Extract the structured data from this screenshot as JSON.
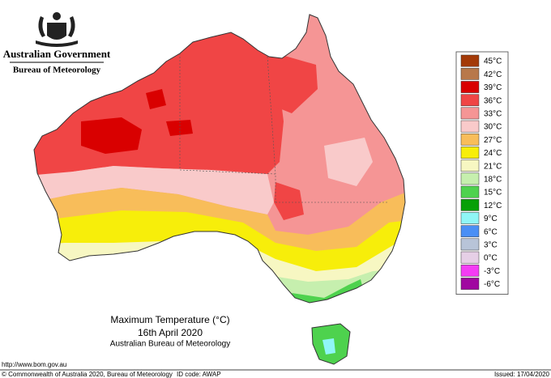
{
  "header": {
    "government": "Australian Government",
    "bureau": "Bureau of Meteorology"
  },
  "legend": {
    "items": [
      {
        "label": "45°C",
        "color": "#a33a08"
      },
      {
        "label": "42°C",
        "color": "#b8784a"
      },
      {
        "label": "39°C",
        "color": "#d90000"
      },
      {
        "label": "36°C",
        "color": "#f04545"
      },
      {
        "label": "33°C",
        "color": "#f59595"
      },
      {
        "label": "30°C",
        "color": "#f9caca"
      },
      {
        "label": "27°C",
        "color": "#f8bd5a"
      },
      {
        "label": "24°C",
        "color": "#f7ee0a"
      },
      {
        "label": "21°C",
        "color": "#f7f7c2"
      },
      {
        "label": "18°C",
        "color": "#c6efae"
      },
      {
        "label": "15°C",
        "color": "#4ed24e"
      },
      {
        "label": "12°C",
        "color": "#07a007"
      },
      {
        "label": "9°C",
        "color": "#8ff6f6"
      },
      {
        "label": "6°C",
        "color": "#4a8ff5"
      },
      {
        "label": "3°C",
        "color": "#b8c4d8"
      },
      {
        "label": "0°C",
        "color": "#e6cfe6"
      },
      {
        "label": "-3°C",
        "color": "#f43cf4"
      },
      {
        "label": "-6°C",
        "color": "#a007a0"
      }
    ]
  },
  "map_title": {
    "lines": [
      "Maximum Temperature (°C)",
      "16th April 2020",
      "Australian Bureau of Meteorology"
    ]
  },
  "footer": {
    "url": "http://www.bom.gov.au",
    "copyright": "© Commonwealth of Australia 2020, Bureau of Meteorology",
    "id_code": "ID code: AWAP",
    "issued": "Issued: 17/04/2020"
  }
}
